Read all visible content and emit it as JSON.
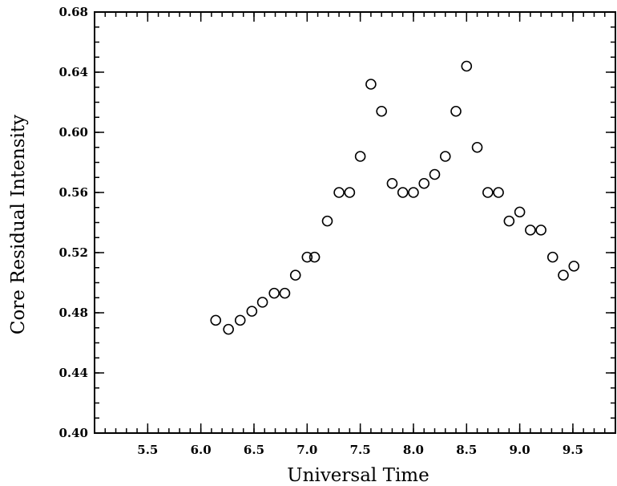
{
  "chart_data": {
    "type": "scatter",
    "xlabel": "Universal Time",
    "ylabel": "Core Residual Intensity",
    "xlim": [
      5.0,
      9.9
    ],
    "ylim": [
      0.4,
      0.68
    ],
    "x_ticks": [
      "5.5",
      "6.0",
      "6.5",
      "7.0",
      "7.5",
      "8.0",
      "8.5",
      "9.0",
      "9.5"
    ],
    "y_ticks": [
      "0.40",
      "0.44",
      "0.48",
      "0.52",
      "0.56",
      "0.60",
      "0.64",
      "0.68"
    ],
    "x_minor_step": 0.1,
    "y_minor_step": 0.01,
    "marker": "open-circle",
    "grid": false,
    "series": [
      {
        "x": [
          6.14,
          6.26,
          6.37,
          6.48,
          6.58,
          6.69,
          6.79,
          6.89,
          7.0,
          7.07,
          7.19,
          7.3,
          7.4,
          7.5,
          7.6,
          7.7,
          7.8,
          7.9,
          8.0,
          8.1,
          8.2,
          8.3,
          8.4,
          8.5,
          8.6,
          8.7,
          8.8,
          8.9,
          9.0,
          9.1,
          9.2,
          9.31,
          9.41,
          9.51
        ],
        "y": [
          0.475,
          0.469,
          0.475,
          0.481,
          0.487,
          0.493,
          0.493,
          0.505,
          0.517,
          0.517,
          0.541,
          0.56,
          0.56,
          0.584,
          0.632,
          0.614,
          0.566,
          0.56,
          0.56,
          0.566,
          0.572,
          0.584,
          0.614,
          0.644,
          0.59,
          0.56,
          0.56,
          0.541,
          0.547,
          0.535,
          0.535,
          0.517,
          0.505,
          0.511
        ]
      }
    ]
  }
}
